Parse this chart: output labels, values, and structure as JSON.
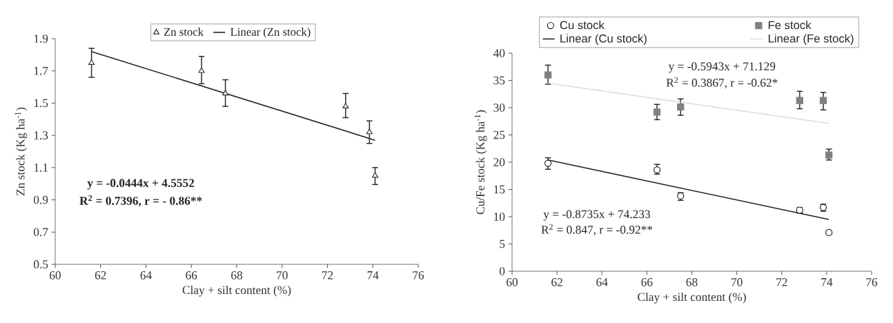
{
  "chart_data": [
    {
      "type": "scatter",
      "xlabel": "Clay + silt content (%)",
      "ylabel": "Zn stock (Kg ha$^{-1}$)",
      "xlim": [
        60,
        76
      ],
      "xticks": [
        60,
        62,
        64,
        66,
        68,
        70,
        72,
        74,
        76
      ],
      "ylim": [
        0.5,
        1.9
      ],
      "yticks": [
        0.5,
        0.7,
        0.9,
        1.1,
        1.3,
        1.5,
        1.7,
        1.9
      ],
      "legend": "top",
      "annotations": [
        "y = -0.0444x + 4.5552",
        "R$^{2}$ = 0.7396, r = - 0.86**"
      ],
      "series": [
        {
          "name": "Zn stock",
          "type": "scatter",
          "marker": "triangle",
          "color": "#333333",
          "x": [
            61.6,
            66.45,
            67.5,
            72.8,
            73.85,
            74.1
          ],
          "values": [
            1.75,
            1.7,
            1.56,
            1.48,
            1.32,
            1.05
          ],
          "errors": [
            [
              1.66,
              1.84
            ],
            [
              1.62,
              1.79
            ],
            [
              1.48,
              1.645
            ],
            [
              1.41,
              1.56
            ],
            [
              1.25,
              1.39
            ],
            [
              0.995,
              1.1
            ]
          ]
        },
        {
          "name": "Linear (Zn stock)",
          "type": "line",
          "line_style": "solid",
          "color": "#222222",
          "x": [
            61.6,
            74.1
          ],
          "values": [
            1.82,
            1.27
          ]
        }
      ]
    },
    {
      "type": "scatter",
      "xlabel": "Clay + silt content (%)",
      "ylabel": "Cu/Fe stock (Kg ha$^{-1}$)",
      "xlim": [
        60,
        76
      ],
      "xticks": [
        60,
        62,
        64,
        66,
        68,
        70,
        72,
        74,
        76
      ],
      "ylim": [
        0,
        40
      ],
      "yticks": [
        0,
        5,
        10,
        15,
        20,
        25,
        30,
        35,
        40
      ],
      "legend": "top",
      "annotations": [
        "y = -0.5943x + 71.129",
        "R$^{2}$ = 0.3867, r = -0.62*",
        "y = -0.8735x + 74.233",
        "R$^{2}$ = 0.847, r = -0.92**"
      ],
      "series": [
        {
          "name": "Cu stock",
          "type": "scatter",
          "marker": "circle",
          "color": "#222222",
          "x": [
            61.6,
            66.45,
            67.5,
            72.8,
            73.85,
            74.1
          ],
          "values": [
            19.8,
            18.6,
            13.8,
            11.2,
            11.7,
            7.1
          ],
          "errors": [
            [
              18.7,
              20.8
            ],
            [
              17.8,
              19.6
            ],
            [
              13.0,
              14.4
            ],
            [
              10.7,
              11.7
            ],
            [
              11.0,
              12.3
            ],
            [
              6.8,
              7.4
            ]
          ]
        },
        {
          "name": "Fe stock",
          "type": "scatter",
          "marker": "square",
          "color": "#808080",
          "x": [
            61.6,
            66.45,
            67.5,
            72.8,
            73.85,
            74.1
          ],
          "values": [
            36.0,
            29.2,
            30.1,
            31.3,
            31.3,
            21.3
          ],
          "errors": [
            [
              34.3,
              37.8
            ],
            [
              27.8,
              30.6
            ],
            [
              28.6,
              31.6
            ],
            [
              29.8,
              33.0
            ],
            [
              29.6,
              32.8
            ],
            [
              20.4,
              22.4
            ]
          ]
        },
        {
          "name": "Linear (Cu stock)",
          "type": "line",
          "line_style": "solid",
          "color": "#222222",
          "x": [
            61.6,
            74.1
          ],
          "values": [
            20.4,
            9.5
          ]
        },
        {
          "name": "Linear (Fe stock)",
          "type": "line",
          "line_style": "dotted",
          "color": "#c0c0c0",
          "x": [
            61.6,
            74.1
          ],
          "values": [
            34.5,
            27.1
          ]
        }
      ]
    }
  ]
}
